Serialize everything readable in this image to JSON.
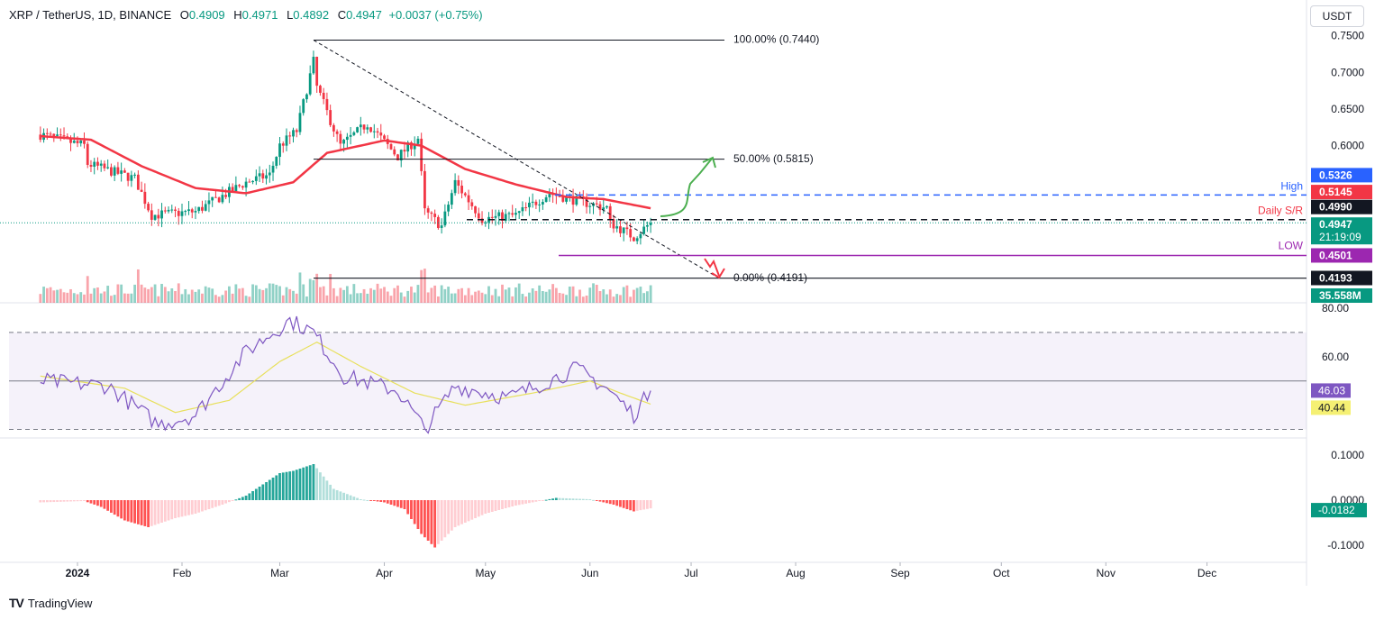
{
  "header": {
    "symbol": "XRP / TetherUS, 1D, BINANCE",
    "open_label": "O",
    "open": "0.4909",
    "high_label": "H",
    "high": "0.4971",
    "low_label": "L",
    "low": "0.4892",
    "close_label": "C",
    "close": "0.4947",
    "change": "+0.0037 (+0.75%)"
  },
  "currency_button": "USDT",
  "footer": {
    "logo": "TV",
    "brand": "TradingView"
  },
  "colors": {
    "up": "#089981",
    "down": "#f23645",
    "ma": "#f23645",
    "rsi": "#7e57c2",
    "rsi_ma": "#e8e05c",
    "fib": "#131722",
    "high_line": "#2962ff",
    "low_line": "#9c27b0",
    "arrow": "#4caf50"
  },
  "chart_data": {
    "type": "candlestick",
    "symbol": "XRP / TetherUS",
    "interval": "1D",
    "exchange": "BINANCE",
    "ohlc_latest": {
      "open": 0.4909,
      "high": 0.4971,
      "low": 0.4892,
      "close": 0.4947,
      "change": 0.0037,
      "change_pct": 0.75
    },
    "x_ticks": [
      "2024",
      "Feb",
      "Mar",
      "Apr",
      "May",
      "Jun",
      "Jul",
      "Aug",
      "Sep",
      "Oct",
      "Nov",
      "Dec"
    ],
    "price_axis": {
      "ticks": [
        "0.7500",
        "0.7000",
        "0.6500",
        "0.6000"
      ],
      "range": [
        0.415,
        0.752
      ]
    },
    "price_labels": [
      {
        "id": "high",
        "text": "0.5326",
        "value": 0.5326,
        "color": "#2962ff"
      },
      {
        "id": "ma",
        "text": "0.5145",
        "value": 0.5145,
        "color": "#f23645"
      },
      {
        "id": "sr",
        "text": "0.4990",
        "value": 0.499,
        "color": "#131722"
      },
      {
        "id": "last",
        "text": "0.4947",
        "value": 0.4947,
        "color": "#089981",
        "countdown": "21:19:09"
      },
      {
        "id": "low",
        "text": "0.4501",
        "value": 0.4501,
        "color": "#9c27b0"
      },
      {
        "id": "bottom",
        "text": "0.4193",
        "value": 0.4193,
        "color": "#131722"
      },
      {
        "id": "volume",
        "text": "35.558M",
        "value": 35.558,
        "color": "#089981"
      }
    ],
    "fib_levels": [
      {
        "text": "100.00% (0.7440)",
        "value": 0.744
      },
      {
        "text": "50.00% (0.5815)",
        "value": 0.5815
      },
      {
        "text": "0.00% (0.4191)",
        "value": 0.4191
      }
    ],
    "line_labels": {
      "high": "High",
      "sr": "Daily S/R",
      "low": "LOW"
    },
    "price_anchors": [
      {
        "date": "2023-12-21",
        "value": 0.615
      },
      {
        "date": "2024-01-03",
        "value": 0.6
      },
      {
        "date": "2024-01-04",
        "value": 0.575
      },
      {
        "date": "2024-01-18",
        "value": 0.555
      },
      {
        "date": "2024-01-23",
        "value": 0.505
      },
      {
        "date": "2024-02-05",
        "value": 0.51
      },
      {
        "date": "2024-02-20",
        "value": 0.55
      },
      {
        "date": "2024-02-27",
        "value": 0.56
      },
      {
        "date": "2024-03-01",
        "value": 0.6
      },
      {
        "date": "2024-03-06",
        "value": 0.62
      },
      {
        "date": "2024-03-11",
        "value": 0.715
      },
      {
        "date": "2024-03-12",
        "value": 0.68
      },
      {
        "date": "2024-03-19",
        "value": 0.6
      },
      {
        "date": "2024-03-27",
        "value": 0.63
      },
      {
        "date": "2024-04-05",
        "value": 0.585
      },
      {
        "date": "2024-04-11",
        "value": 0.61
      },
      {
        "date": "2024-04-13",
        "value": 0.51
      },
      {
        "date": "2024-04-18",
        "value": 0.49
      },
      {
        "date": "2024-04-22",
        "value": 0.55
      },
      {
        "date": "2024-04-30",
        "value": 0.5
      },
      {
        "date": "2024-05-10",
        "value": 0.505
      },
      {
        "date": "2024-05-20",
        "value": 0.535
      },
      {
        "date": "2024-05-28",
        "value": 0.525
      },
      {
        "date": "2024-06-06",
        "value": 0.515
      },
      {
        "date": "2024-06-07",
        "value": 0.495
      },
      {
        "date": "2024-06-14",
        "value": 0.475
      },
      {
        "date": "2024-06-19",
        "value": 0.4947
      }
    ],
    "ma_anchors": [
      {
        "date": "2023-12-21",
        "value": 0.613
      },
      {
        "date": "2024-01-05",
        "value": 0.608
      },
      {
        "date": "2024-01-20",
        "value": 0.572
      },
      {
        "date": "2024-02-05",
        "value": 0.542
      },
      {
        "date": "2024-02-20",
        "value": 0.535
      },
      {
        "date": "2024-03-05",
        "value": 0.55
      },
      {
        "date": "2024-03-15",
        "value": 0.59
      },
      {
        "date": "2024-04-01",
        "value": 0.607
      },
      {
        "date": "2024-04-12",
        "value": 0.6
      },
      {
        "date": "2024-04-25",
        "value": 0.568
      },
      {
        "date": "2024-05-10",
        "value": 0.547
      },
      {
        "date": "2024-05-25",
        "value": 0.53
      },
      {
        "date": "2024-06-05",
        "value": 0.527
      },
      {
        "date": "2024-06-19",
        "value": 0.5145
      }
    ],
    "rsi": {
      "ticks": [
        "80.00",
        "60.00"
      ],
      "range": [
        25,
        80
      ],
      "bands": {
        "upper": 70,
        "middle": 50,
        "lower": 30
      },
      "rsi_value": "46.03",
      "ma_value": "40.44",
      "rsi_anchors": [
        {
          "date": "2023-12-21",
          "value": 50
        },
        {
          "date": "2024-01-10",
          "value": 48
        },
        {
          "date": "2024-01-25",
          "value": 32
        },
        {
          "date": "2024-02-05",
          "value": 36
        },
        {
          "date": "2024-02-20",
          "value": 62
        },
        {
          "date": "2024-03-04",
          "value": 75
        },
        {
          "date": "2024-03-11",
          "value": 70
        },
        {
          "date": "2024-03-20",
          "value": 52
        },
        {
          "date": "2024-04-05",
          "value": 46
        },
        {
          "date": "2024-04-13",
          "value": 30
        },
        {
          "date": "2024-04-22",
          "value": 48
        },
        {
          "date": "2024-05-08",
          "value": 43
        },
        {
          "date": "2024-05-28",
          "value": 55
        },
        {
          "date": "2024-06-06",
          "value": 47
        },
        {
          "date": "2024-06-14",
          "value": 36
        },
        {
          "date": "2024-06-19",
          "value": 46
        }
      ],
      "ma_anchors": [
        {
          "date": "2023-12-21",
          "value": 52
        },
        {
          "date": "2024-01-15",
          "value": 47
        },
        {
          "date": "2024-01-30",
          "value": 37
        },
        {
          "date": "2024-02-15",
          "value": 42
        },
        {
          "date": "2024-03-01",
          "value": 58
        },
        {
          "date": "2024-03-12",
          "value": 66
        },
        {
          "date": "2024-03-25",
          "value": 56
        },
        {
          "date": "2024-04-10",
          "value": 45
        },
        {
          "date": "2024-04-25",
          "value": 40
        },
        {
          "date": "2024-05-15",
          "value": 45
        },
        {
          "date": "2024-06-01",
          "value": 50
        },
        {
          "date": "2024-06-10",
          "value": 45
        },
        {
          "date": "2024-06-19",
          "value": 40.44
        }
      ]
    },
    "macd": {
      "ticks": [
        "0.1000",
        "0.0000",
        "-0.1000"
      ],
      "range": [
        -0.11,
        0.11
      ],
      "value": "-0.0182",
      "hist_anchors": [
        {
          "date": "2023-12-21",
          "value": -0.005
        },
        {
          "date": "2024-01-03",
          "value": -0.002
        },
        {
          "date": "2024-01-08",
          "value": -0.015
        },
        {
          "date": "2024-01-15",
          "value": -0.045
        },
        {
          "date": "2024-01-22",
          "value": -0.06
        },
        {
          "date": "2024-01-30",
          "value": -0.04
        },
        {
          "date": "2024-02-05",
          "value": -0.03
        },
        {
          "date": "2024-02-13",
          "value": -0.01
        },
        {
          "date": "2024-02-20",
          "value": 0.01
        },
        {
          "date": "2024-03-01",
          "value": 0.06
        },
        {
          "date": "2024-03-05",
          "value": 0.065
        },
        {
          "date": "2024-03-11",
          "value": 0.08
        },
        {
          "date": "2024-03-17",
          "value": 0.025
        },
        {
          "date": "2024-03-25",
          "value": 0.002
        },
        {
          "date": "2024-04-01",
          "value": -0.005
        },
        {
          "date": "2024-04-07",
          "value": -0.02
        },
        {
          "date": "2024-04-12",
          "value": -0.075
        },
        {
          "date": "2024-04-16",
          "value": -0.105
        },
        {
          "date": "2024-04-22",
          "value": -0.06
        },
        {
          "date": "2024-05-01",
          "value": -0.03
        },
        {
          "date": "2024-05-10",
          "value": -0.012
        },
        {
          "date": "2024-05-22",
          "value": 0.005
        },
        {
          "date": "2024-06-01",
          "value": 0.002
        },
        {
          "date": "2024-06-08",
          "value": -0.01
        },
        {
          "date": "2024-06-14",
          "value": -0.025
        },
        {
          "date": "2024-06-19",
          "value": -0.0182
        }
      ]
    },
    "volume_scale_max": 60
  }
}
